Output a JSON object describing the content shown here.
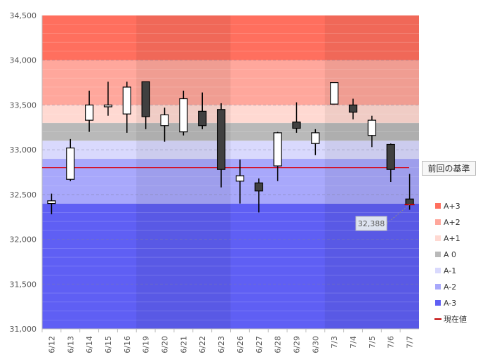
{
  "chart_data": {
    "type": "candlestick",
    "title": "",
    "xlabel": "",
    "ylabel": "",
    "ylim": [
      31000,
      34500
    ],
    "y_ticks": [
      "31,000",
      "31,500",
      "32,000",
      "32,500",
      "33,000",
      "33,500",
      "34,000",
      "34,500"
    ],
    "y_tick_values": [
      31000,
      31500,
      32000,
      32500,
      33000,
      33500,
      34000,
      34500
    ],
    "categories": [
      "6/12",
      "6/13",
      "6/14",
      "6/15",
      "6/16",
      "6/19",
      "6/20",
      "6/21",
      "6/22",
      "6/23",
      "6/26",
      "6/27",
      "6/28",
      "6/29",
      "6/30",
      "7/3",
      "7/4",
      "7/5",
      "7/6",
      "7/7"
    ],
    "candles": [
      {
        "date": "6/12",
        "open": 32400,
        "high": 32510,
        "low": 32280,
        "close": 32430
      },
      {
        "date": "6/13",
        "open": 32670,
        "high": 33120,
        "low": 32650,
        "close": 33020
      },
      {
        "date": "6/14",
        "open": 33330,
        "high": 33660,
        "low": 33200,
        "close": 33500
      },
      {
        "date": "6/15",
        "open": 33480,
        "high": 33760,
        "low": 33380,
        "close": 33500
      },
      {
        "date": "6/16",
        "open": 33400,
        "high": 33760,
        "low": 33190,
        "close": 33700
      },
      {
        "date": "6/19",
        "open": 33760,
        "high": 33760,
        "low": 33230,
        "close": 33370
      },
      {
        "date": "6/20",
        "open": 33270,
        "high": 33470,
        "low": 33090,
        "close": 33390
      },
      {
        "date": "6/21",
        "open": 33200,
        "high": 33660,
        "low": 33160,
        "close": 33570
      },
      {
        "date": "6/22",
        "open": 33430,
        "high": 33640,
        "low": 33230,
        "close": 33270
      },
      {
        "date": "6/23",
        "open": 33450,
        "high": 33520,
        "low": 32580,
        "close": 32780
      },
      {
        "date": "6/26",
        "open": 32650,
        "high": 32890,
        "low": 32400,
        "close": 32710
      },
      {
        "date": "6/27",
        "open": 32630,
        "high": 32680,
        "low": 32300,
        "close": 32540
      },
      {
        "date": "6/28",
        "open": 32820,
        "high": 33200,
        "low": 32650,
        "close": 33190
      },
      {
        "date": "6/29",
        "open": 33310,
        "high": 33530,
        "low": 33190,
        "close": 33240
      },
      {
        "date": "6/30",
        "open": 33070,
        "high": 33230,
        "low": 32940,
        "close": 33190
      },
      {
        "date": "7/3",
        "open": 33510,
        "high": 33750,
        "low": 33510,
        "close": 33750
      },
      {
        "date": "7/4",
        "open": 33500,
        "high": 33570,
        "low": 33340,
        "close": 33420
      },
      {
        "date": "7/5",
        "open": 33160,
        "high": 33380,
        "low": 33030,
        "close": 33330
      },
      {
        "date": "7/6",
        "open": 33060,
        "high": 33070,
        "low": 32640,
        "close": 32780
      },
      {
        "date": "7/7",
        "open": 32450,
        "high": 32730,
        "low": 32330,
        "close": 32388
      }
    ],
    "bands": [
      {
        "name": "A+3",
        "from": 34000,
        "to": 34500,
        "color": "#ff6f5e"
      },
      {
        "name": "A+2",
        "from": 33500,
        "to": 34000,
        "color": "#ffa79c"
      },
      {
        "name": "A+1",
        "from": 33300,
        "to": 33500,
        "color": "#ffd9d2"
      },
      {
        "name": "A 0",
        "from": 33100,
        "to": 33300,
        "color": "#b9b9b9"
      },
      {
        "name": "A-1",
        "from": 32900,
        "to": 33100,
        "color": "#d9d9fd"
      },
      {
        "name": "A-2",
        "from": 32400,
        "to": 32900,
        "color": "#a8a8fb"
      },
      {
        "name": "A-3",
        "from": 31000,
        "to": 32400,
        "color": "#5f5ff4"
      }
    ],
    "shaded_weeks": [
      [
        0,
        4
      ],
      [
        10,
        14
      ]
    ],
    "baseline": {
      "value": 32800,
      "label": "前回の基準",
      "color": "#d9000f"
    },
    "current_value": {
      "value": 32388,
      "label": "32,388"
    },
    "legend": [
      {
        "name": "A+3",
        "color": "#ff6f5e"
      },
      {
        "name": "A+2",
        "color": "#ffa79c"
      },
      {
        "name": "A+1",
        "color": "#ffd9d2"
      },
      {
        "name": "A 0",
        "color": "#b9b9b9"
      },
      {
        "name": "A-1",
        "color": "#d9d9fd"
      },
      {
        "name": "A-2",
        "color": "#a8a8fb"
      },
      {
        "name": "A-3",
        "color": "#5f5ff4"
      },
      {
        "name": "現在値",
        "color": "#c00000"
      }
    ],
    "legend_position": "right"
  }
}
